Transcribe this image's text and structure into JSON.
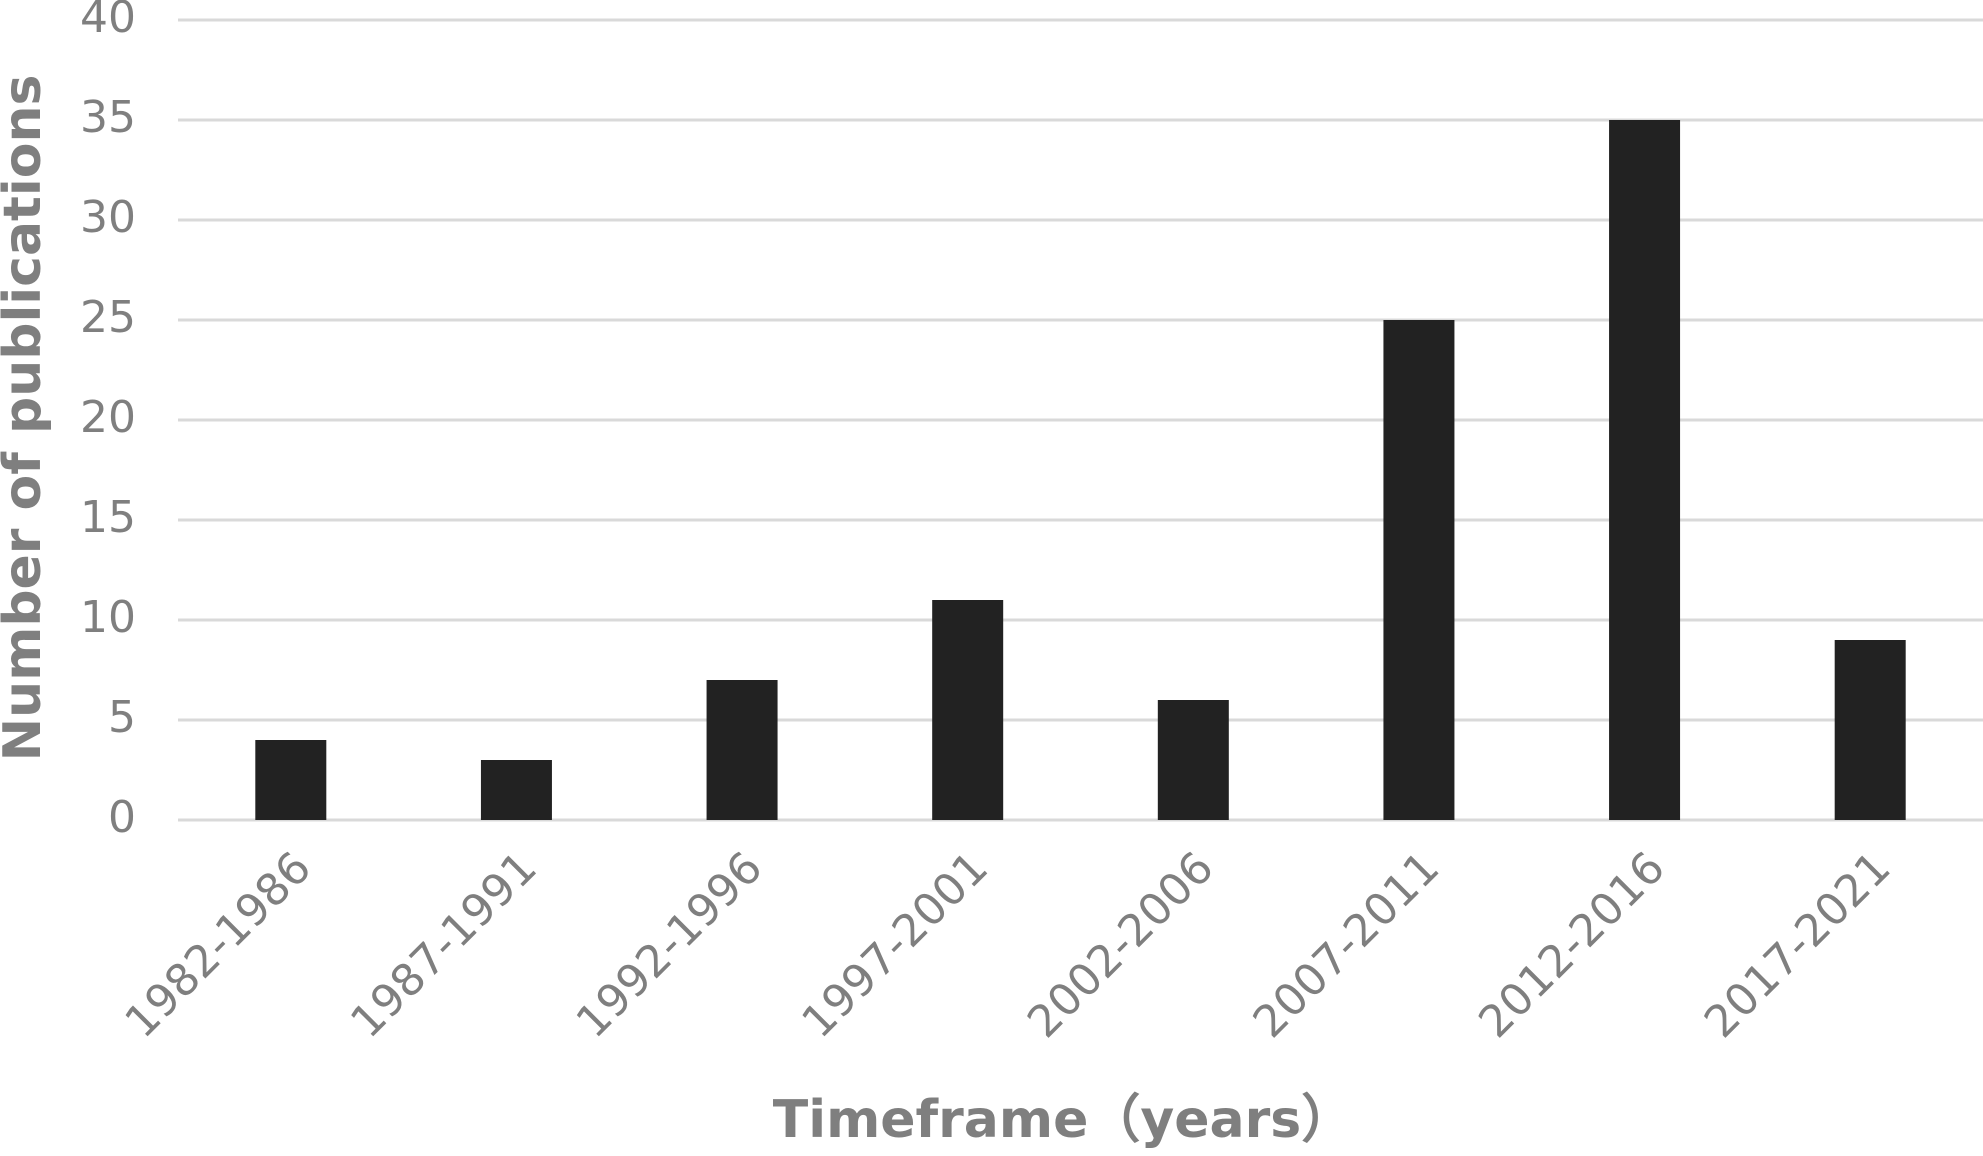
{
  "chart_data": {
    "type": "bar",
    "x_label": "Timeframe（years）",
    "y_label": "Number of publications",
    "categories": [
      "1982-1986",
      "1987-1991",
      "1992-1996",
      "1997-2001",
      "2002-2006",
      "2007-2011",
      "2012-2016",
      "2017-2021"
    ],
    "values": [
      4,
      3,
      7,
      11,
      6,
      25,
      35,
      9
    ],
    "color": "#222222",
    "ylim": [
      0,
      40
    ],
    "yticks": [
      0,
      5,
      10,
      15,
      20,
      25,
      30,
      35,
      40
    ],
    "grid": true
  }
}
